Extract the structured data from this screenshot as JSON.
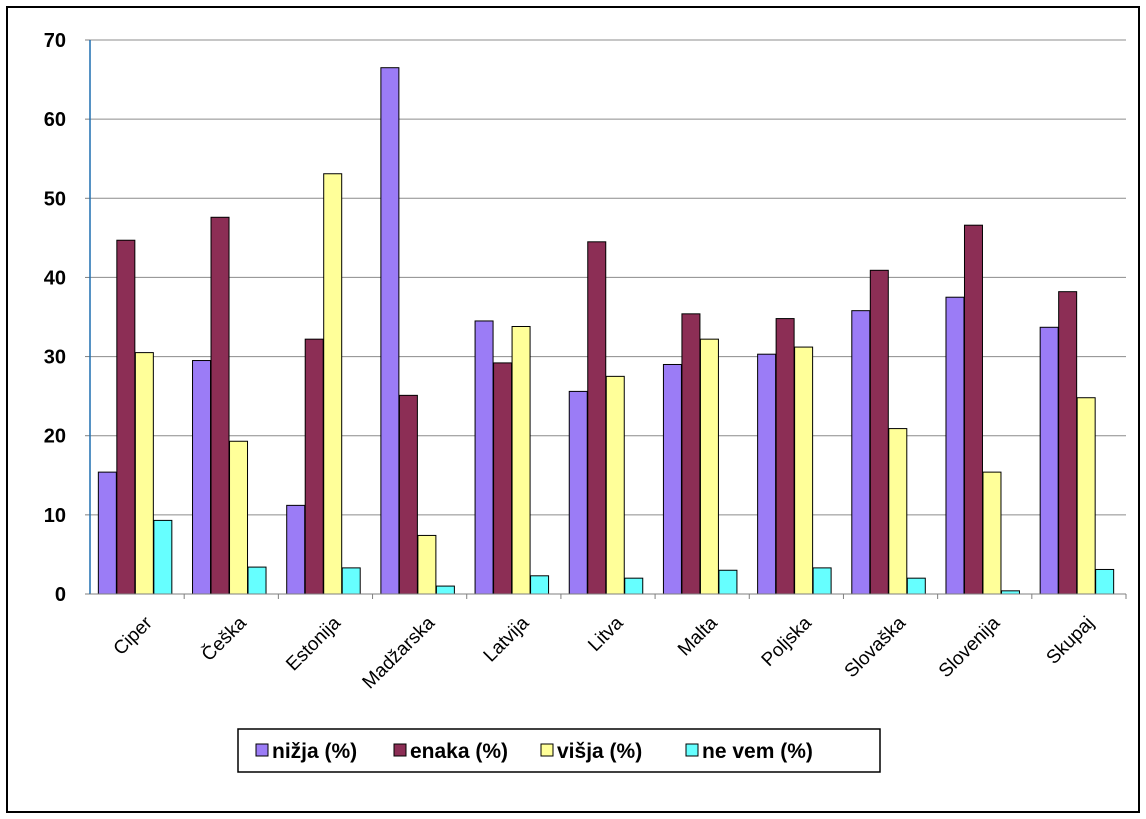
{
  "chart_data": {
    "type": "bar",
    "categories": [
      "Ciper",
      "Češka",
      "Estonija",
      "Madžarska",
      "Latvija",
      "Litva",
      "Malta",
      "Poljska",
      "Slovaška",
      "Slovenija",
      "Skupaj"
    ],
    "series": [
      {
        "name": "nižja (%)",
        "color": "#9b7cf6",
        "values": [
          15.4,
          29.5,
          11.2,
          66.5,
          34.5,
          25.6,
          29.0,
          30.3,
          35.8,
          37.5,
          33.7
        ]
      },
      {
        "name": "enaka (%)",
        "color": "#8c2e55",
        "values": [
          44.7,
          47.6,
          32.2,
          25.1,
          29.2,
          44.5,
          35.4,
          34.8,
          40.9,
          46.6,
          38.2
        ]
      },
      {
        "name": "višja (%)",
        "color": "#ffff99",
        "values": [
          30.5,
          19.3,
          53.1,
          7.4,
          33.8,
          27.5,
          32.2,
          31.2,
          20.9,
          15.4,
          24.8
        ]
      },
      {
        "name": "ne vem (%)",
        "color": "#66ffff",
        "values": [
          9.3,
          3.4,
          3.3,
          1.0,
          2.3,
          2.0,
          3.0,
          3.3,
          2.0,
          0.4,
          3.1
        ]
      }
    ],
    "yticks": [
      "0",
      "10",
      "20",
      "30",
      "40",
      "50",
      "60",
      "70"
    ],
    "ylim": [
      0,
      70
    ],
    "grid": true,
    "legend": "bottom"
  }
}
